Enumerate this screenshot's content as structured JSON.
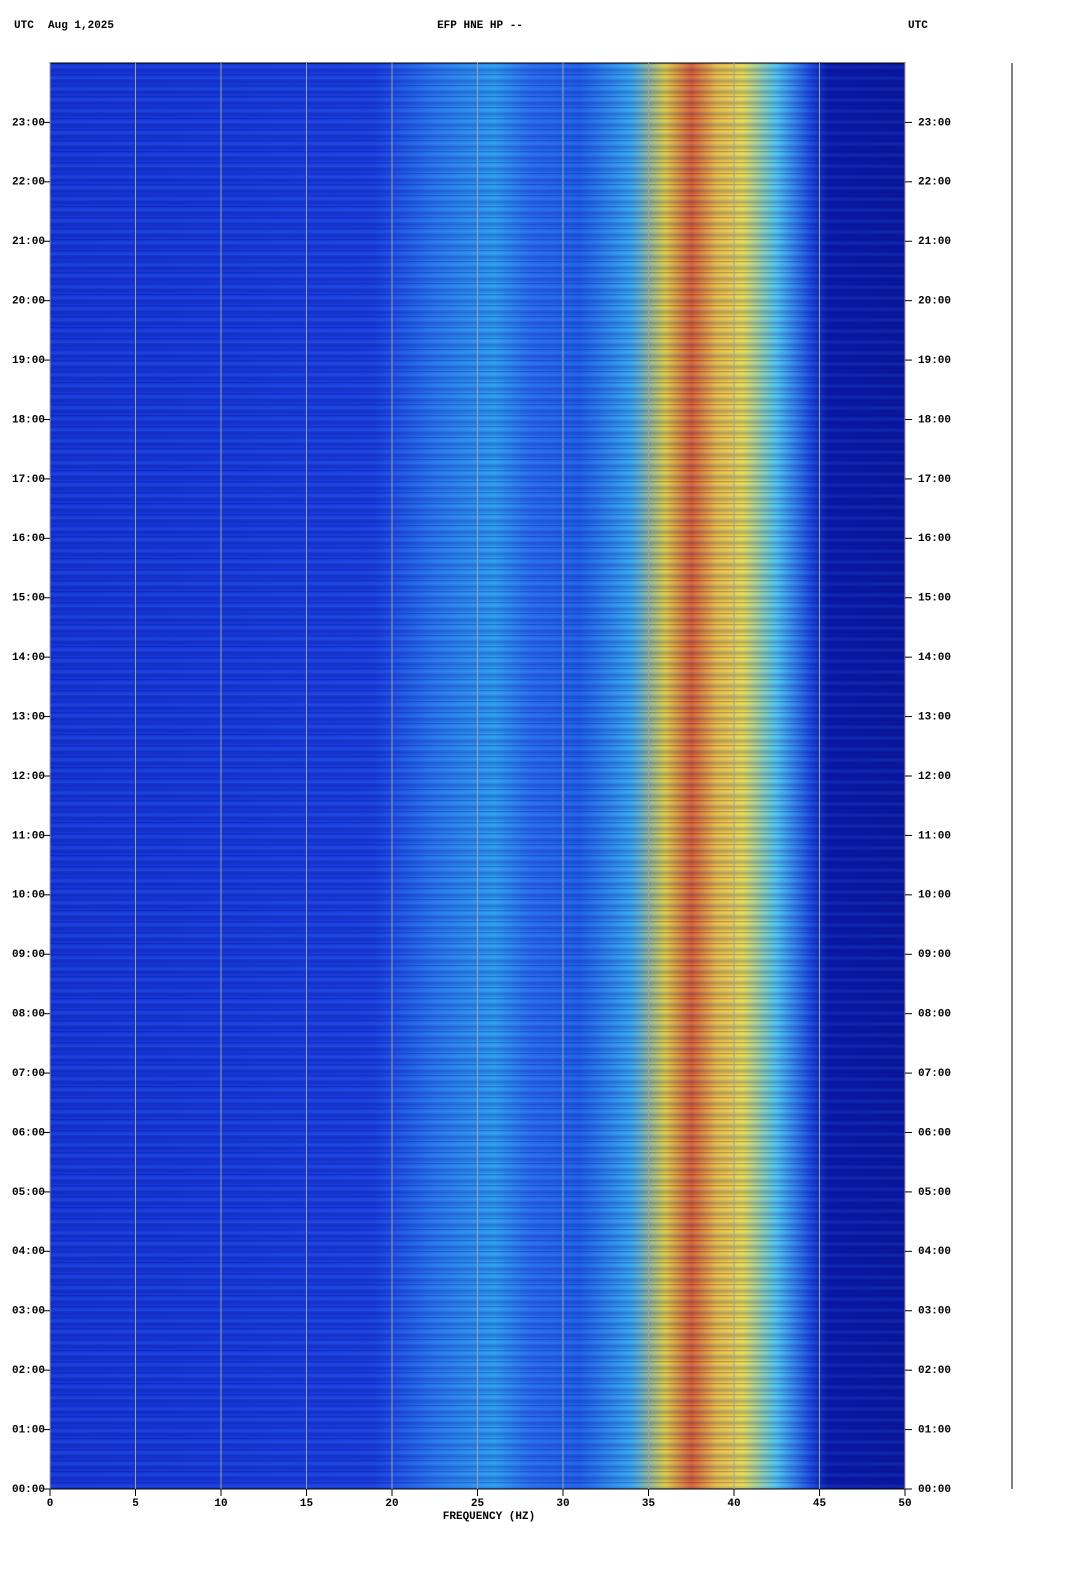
{
  "chart_data": {
    "type": "spectrogram",
    "header_left": "UTC",
    "date": "Aug 1,2025",
    "title": "EFP HNE HP --",
    "header_right": "UTC",
    "xlabel": "FREQUENCY (HZ)",
    "xlim": [
      0,
      50
    ],
    "xticks": [
      0,
      5,
      10,
      15,
      20,
      25,
      30,
      35,
      40,
      45,
      50
    ],
    "ylim": [
      0,
      24
    ],
    "yticks": [
      {
        "value": 0,
        "label": "00:00"
      },
      {
        "value": 1,
        "label": "01:00"
      },
      {
        "value": 2,
        "label": "02:00"
      },
      {
        "value": 3,
        "label": "03:00"
      },
      {
        "value": 4,
        "label": "04:00"
      },
      {
        "value": 5,
        "label": "05:00"
      },
      {
        "value": 6,
        "label": "06:00"
      },
      {
        "value": 7,
        "label": "07:00"
      },
      {
        "value": 8,
        "label": "08:00"
      },
      {
        "value": 9,
        "label": "09:00"
      },
      {
        "value": 10,
        "label": "10:00"
      },
      {
        "value": 11,
        "label": "11:00"
      },
      {
        "value": 12,
        "label": "12:00"
      },
      {
        "value": 13,
        "label": "13:00"
      },
      {
        "value": 14,
        "label": "14:00"
      },
      {
        "value": 15,
        "label": "15:00"
      },
      {
        "value": 16,
        "label": "16:00"
      },
      {
        "value": 17,
        "label": "17:00"
      },
      {
        "value": 18,
        "label": "18:00"
      },
      {
        "value": 19,
        "label": "19:00"
      },
      {
        "value": 20,
        "label": "20:00"
      },
      {
        "value": 21,
        "label": "21:00"
      },
      {
        "value": 22,
        "label": "22:00"
      },
      {
        "value": 23,
        "label": "23:00"
      }
    ],
    "grid": true,
    "grid_color": "#a0a0a0"
  }
}
